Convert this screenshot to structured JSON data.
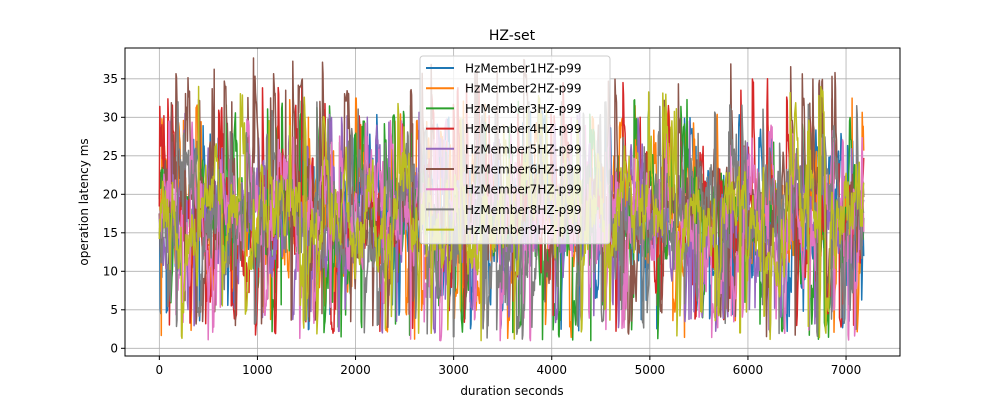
{
  "chart_data": {
    "type": "line",
    "title": "HZ-set",
    "xlabel": "duration seconds",
    "ylabel": "operation latency ms",
    "xlim": [
      -350,
      7550
    ],
    "ylim": [
      -1,
      39
    ],
    "xticks": [
      0,
      1000,
      2000,
      3000,
      4000,
      5000,
      6000,
      7000
    ],
    "yticks": [
      0,
      5,
      10,
      15,
      20,
      25,
      30,
      35
    ],
    "grid": true,
    "legend_position": "upper center",
    "x_range": [
      0,
      7180
    ],
    "series": [
      {
        "name": "HzMember1HZ-p99",
        "color": "#1f77b4",
        "min": 2.2,
        "max": 31.0,
        "mean": 17.5,
        "peaks": [
          [
            2950,
            30.0
          ],
          [
            6400,
            2.2
          ],
          [
            7100,
            2.5
          ]
        ]
      },
      {
        "name": "HzMember2HZ-p99",
        "color": "#ff7f0e",
        "min": 1.2,
        "max": 32.5,
        "mean": 17.0,
        "peaks": [
          [
            1520,
            30.0
          ],
          [
            7060,
            32.5
          ],
          [
            2600,
            1.2
          ]
        ]
      },
      {
        "name": "HzMember3HZ-p99",
        "color": "#2ca02c",
        "min": 1.0,
        "max": 32.3,
        "mean": 17.0,
        "peaks": [
          [
            5380,
            32.3
          ],
          [
            4400,
            1.0
          ],
          [
            1740,
            30.0
          ]
        ]
      },
      {
        "name": "HzMember4HZ-p99",
        "color": "#d62728",
        "min": 1.5,
        "max": 35.0,
        "mean": 17.0,
        "peaks": [
          [
            6200,
            35.0
          ],
          [
            4900,
            30.0
          ],
          [
            7080,
            3.0
          ]
        ]
      },
      {
        "name": "HzMember5HZ-p99",
        "color": "#9467bd",
        "min": 2.0,
        "max": 31.0,
        "mean": 17.0,
        "peaks": [
          [
            260,
            30.5
          ],
          [
            1830,
            2.2
          ],
          [
            1050,
            4.0
          ]
        ]
      },
      {
        "name": "HzMember6HZ-p99",
        "color": "#8c564b",
        "min": 1.5,
        "max": 37.7,
        "mean": 18.0,
        "peaks": [
          [
            960,
            37.7
          ],
          [
            1290,
            33.5
          ],
          [
            740,
            32.0
          ]
        ]
      },
      {
        "name": "HzMember7HZ-p99",
        "color": "#e377c2",
        "min": 1.0,
        "max": 30.0,
        "mean": 17.0,
        "peaks": [
          [
            100,
            29.5
          ],
          [
            4200,
            30.0
          ],
          [
            2560,
            1.2
          ]
        ]
      },
      {
        "name": "HzMember8HZ-p99",
        "color": "#7f7f7f",
        "min": 1.0,
        "max": 32.0,
        "mean": 17.0,
        "peaks": [
          [
            4100,
            32.0
          ],
          [
            3000,
            1.5
          ],
          [
            3700,
            1.2
          ]
        ]
      },
      {
        "name": "HzMember9HZ-p99",
        "color": "#bcbd22",
        "min": 1.0,
        "max": 34.0,
        "mean": 17.5,
        "peaks": [
          [
            400,
            34.0
          ],
          [
            5920,
            2.0
          ],
          [
            3280,
            1.0
          ]
        ]
      }
    ]
  }
}
